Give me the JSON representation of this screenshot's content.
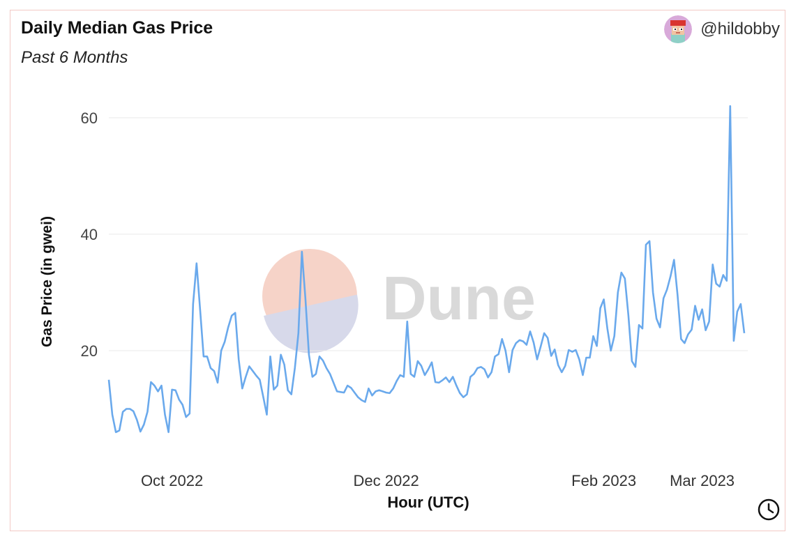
{
  "header": {
    "title": "Daily Median Gas Price",
    "subtitle": "Past 6 Months",
    "author": "@hildobby"
  },
  "watermark": {
    "text": "Dune"
  },
  "colors": {
    "line": "#6aa9ec",
    "grid": "#e9e9e9",
    "frame": "#f2c9c5",
    "watermark_top": "#f6d3c8",
    "watermark_bottom": "#d7d9ea",
    "watermark_text": "#d9d9d9"
  },
  "icons": {
    "avatar": "avatar-icon",
    "history": "clock-icon"
  },
  "chart_data": {
    "type": "line",
    "title": "Daily Median Gas Price",
    "subtitle": "Past 6 Months",
    "xlabel": "Hour (UTC)",
    "ylabel": "Gas Price (in gwei)",
    "ylim": [
      0,
      62.5
    ],
    "yticks": [
      20,
      40,
      60
    ],
    "xlim": [
      "2022-09-13",
      "2023-03-14"
    ],
    "xticks": [
      {
        "date": "2022-10-01",
        "label": "Oct 2022"
      },
      {
        "date": "2022-12-01",
        "label": "Dec 2022"
      },
      {
        "date": "2023-02-01",
        "label": "Feb 2023"
      },
      {
        "date": "2023-03-01",
        "label": "Mar 2023"
      }
    ],
    "grid": true,
    "legend": "none",
    "series": [
      {
        "x_start": "2022-09-13",
        "x_step_days": 1,
        "values": [
          15,
          9,
          6,
          6.3,
          9.5,
          10,
          10,
          9.6,
          8.1,
          6.1,
          7.3,
          9.5,
          14.6,
          14,
          13,
          14,
          9,
          6,
          13.3,
          13.2,
          11.6,
          10.7,
          8.6,
          9.2,
          28,
          35,
          27,
          19,
          19,
          17,
          16.5,
          14.5,
          20,
          21.5,
          24,
          26,
          26.5,
          18.5,
          13.5,
          15.5,
          17.3,
          16.5,
          15.7,
          15,
          12,
          9,
          19,
          13.3,
          14,
          19.3,
          17.6,
          13.2,
          12.5,
          17,
          23,
          37,
          29,
          19.3,
          15.5,
          16,
          19,
          18.3,
          17,
          16,
          14.5,
          13,
          12.9,
          12.8,
          14,
          13.6,
          12.8,
          12,
          11.5,
          11.2,
          13.5,
          12.3,
          13,
          13.2,
          13,
          12.8,
          12.7,
          13.5,
          14.8,
          15.8,
          15.5,
          25,
          16,
          15.5,
          18.2,
          17.4,
          15.8,
          16.8,
          18,
          14.6,
          14.5,
          14.9,
          15.4,
          14.6,
          15.5,
          14,
          12.7,
          12,
          12.5,
          15.5,
          16,
          17,
          17.2,
          16.8,
          15.4,
          16.3,
          19,
          19.4,
          22,
          20,
          16.3,
          20.1,
          21.3,
          21.8,
          21.6,
          21,
          23.3,
          21.4,
          18.5,
          20.7,
          23,
          22.2,
          19.1,
          20.2,
          17.5,
          16.3,
          17.4,
          20.1,
          19.8,
          20.1,
          18.5,
          15.8,
          18.8,
          18.8,
          22.5,
          20.8,
          27.3,
          28.8,
          23.8,
          20,
          22.5,
          30,
          33.4,
          32.4,
          26,
          18.2,
          17.2,
          24.4,
          23.8,
          38.2,
          38.8,
          30,
          25.5,
          24,
          29,
          30.5,
          32.8,
          35.6,
          29.6,
          22,
          21.3,
          22.8,
          23.6,
          27.7,
          25.3,
          27.1,
          23.5,
          25,
          34.8,
          31.5,
          31,
          33,
          32,
          62,
          21.7,
          26.7,
          28,
          23
        ]
      }
    ]
  }
}
